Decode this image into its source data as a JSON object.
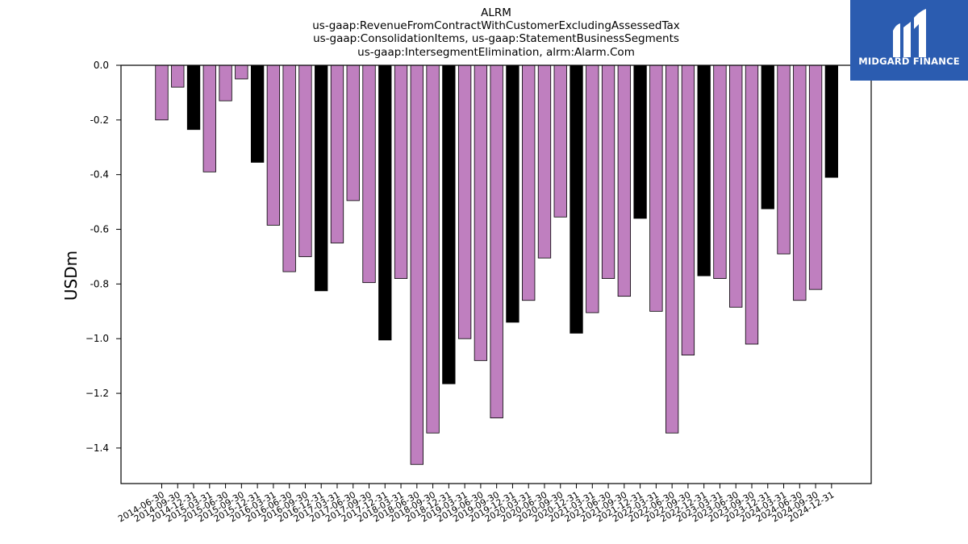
{
  "brand": {
    "name": "MIDGARD FINANCE",
    "bg_color": "#2b5cb0"
  },
  "chart_data": {
    "type": "bar",
    "title_lines": [
      "ALRM",
      "us-gaap:RevenueFromContractWithCustomerExcludingAssessedTax",
      "us-gaap:ConsolidationItems, us-gaap:StatementBusinessSegments",
      "us-gaap:IntersegmentElimination, alrm:Alarm.Com"
    ],
    "xlabel": "",
    "ylabel": "USDm",
    "ylim": [
      -1.53,
      0.0
    ],
    "yticks": [
      0.0,
      -0.2,
      -0.4,
      -0.6,
      -0.8,
      -1.0,
      -1.2,
      -1.4
    ],
    "ytick_labels": [
      "0.0",
      "-0.2",
      "-0.4",
      "-0.6",
      "-0.8",
      "−1.0",
      "−1.2",
      "−1.4"
    ],
    "bar_color": "#bf7fbf",
    "highlight_color": "#000000",
    "categories": [
      "2014-06-30",
      "2014-09-30",
      "2014-12-31",
      "2015-03-31",
      "2015-06-30",
      "2015-09-30",
      "2015-12-31",
      "2016-03-31",
      "2016-06-30",
      "2016-09-30",
      "2016-12-31",
      "2017-03-31",
      "2017-06-30",
      "2017-09-30",
      "2017-12-31",
      "2018-03-31",
      "2018-06-30",
      "2018-09-30",
      "2018-12-31",
      "2019-03-31",
      "2019-06-30",
      "2019-09-30",
      "2019-12-31",
      "2020-03-31",
      "2020-06-30",
      "2020-09-30",
      "2020-12-31",
      "2021-03-31",
      "2021-06-30",
      "2021-09-30",
      "2021-12-31",
      "2022-03-31",
      "2022-06-30",
      "2022-09-30",
      "2022-12-31",
      "2023-03-31",
      "2023-06-30",
      "2023-09-30",
      "2023-12-31",
      "2024-03-31",
      "2024-06-30",
      "2024-09-30",
      "2024-12-31"
    ],
    "values": [
      -0.2,
      -0.08,
      -0.235,
      -0.39,
      -0.13,
      -0.05,
      -0.355,
      -0.585,
      -0.755,
      -0.7,
      -0.825,
      -0.65,
      -0.495,
      -0.795,
      -1.005,
      -0.78,
      -1.46,
      -1.345,
      -1.165,
      -1.0,
      -1.08,
      -1.29,
      -0.94,
      -0.86,
      -0.705,
      -0.555,
      -0.98,
      -0.905,
      -0.78,
      -0.845,
      -0.56,
      -0.9,
      -1.345,
      -1.06,
      -0.77,
      -0.78,
      -0.885,
      -1.02,
      -0.525,
      -0.69,
      -0.86,
      -0.82,
      -0.41
    ],
    "highlight_categories": [
      "2014-12-31",
      "2015-12-31",
      "2016-12-31",
      "2017-12-31",
      "2018-12-31",
      "2019-12-31",
      "2020-12-31",
      "2021-12-31",
      "2022-12-31",
      "2023-12-31",
      "2024-12-31"
    ],
    "grid": false,
    "legend": "none"
  }
}
